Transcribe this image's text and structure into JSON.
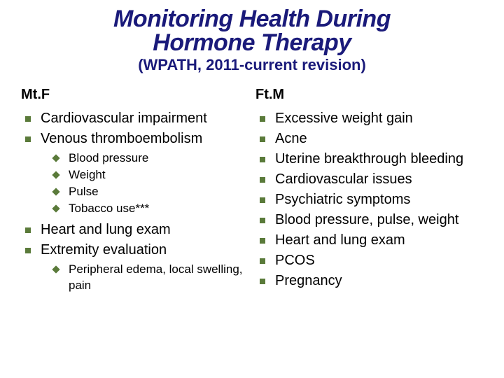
{
  "title_line1": "Monitoring Health During",
  "title_line2": "Hormone Therapy",
  "subtitle": "(WPATH, 2011-current revision)",
  "left": {
    "header": "Mt.F",
    "items": [
      {
        "text": "Cardiovascular impairment"
      },
      {
        "text": "Venous thromboembolism",
        "sub": [
          "Blood pressure",
          "Weight",
          "Pulse",
          "Tobacco use***"
        ]
      },
      {
        "text": "Heart and lung exam"
      },
      {
        "text": "Extremity evaluation",
        "sub": [
          "Peripheral edema, local swelling, pain"
        ]
      }
    ]
  },
  "right": {
    "header": "Ft.M",
    "items": [
      {
        "text": "Excessive weight gain"
      },
      {
        "text": "Acne"
      },
      {
        "text": "Uterine breakthrough bleeding"
      },
      {
        "text": "Cardiovascular issues"
      },
      {
        "text": "Psychiatric symptoms"
      },
      {
        "text": "Blood pressure, pulse, weight"
      },
      {
        "text": "Heart and lung exam"
      },
      {
        "text": "PCOS"
      },
      {
        "text": "Pregnancy"
      }
    ]
  },
  "colors": {
    "title": "#1a1a7a",
    "bullet": "#5a7a3a",
    "text": "#000000",
    "background": "#ffffff"
  }
}
